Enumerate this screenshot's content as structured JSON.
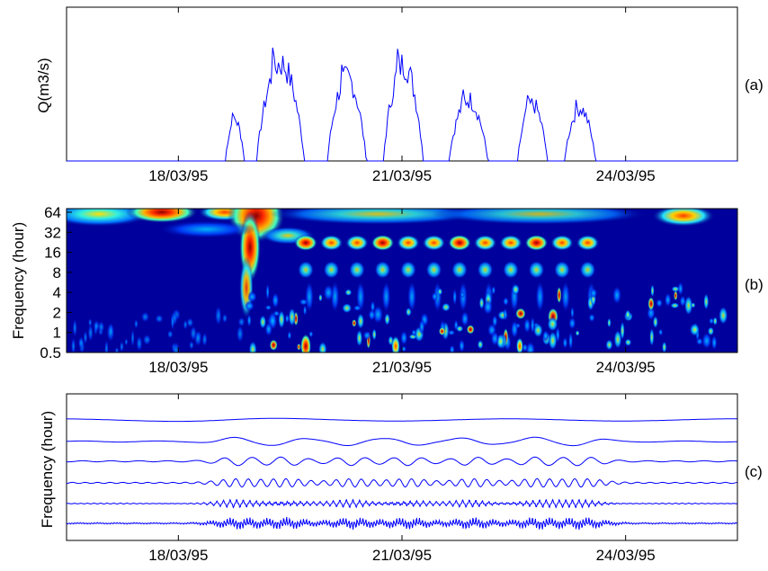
{
  "chart_data": [
    {
      "type": "line",
      "panel": "(a)",
      "ylabel": "Q(m3/s)",
      "xlabel": "",
      "title": "",
      "xticks": [
        "18/03/95",
        "21/03/95",
        "24/03/95"
      ],
      "x_tick_days": [
        1.5,
        4.5,
        7.5
      ],
      "xlim_days": [
        0,
        9
      ],
      "ylim": [
        0,
        1
      ],
      "series_color": "#0000ff",
      "daily_peaks": [
        {
          "day_start": 2.13,
          "day_end": 2.45,
          "peak": 0.42
        },
        {
          "day_start": 2.55,
          "day_end": 3.35,
          "peak": 1.0
        },
        {
          "day_start": 3.5,
          "day_end": 4.15,
          "peak": 0.85
        },
        {
          "day_start": 4.25,
          "day_end": 4.92,
          "peak": 0.99
        },
        {
          "day_start": 5.13,
          "day_end": 5.78,
          "peak": 0.63
        },
        {
          "day_start": 6.05,
          "day_end": 6.55,
          "peak": 0.58
        },
        {
          "day_start": 6.68,
          "day_end": 7.2,
          "peak": 0.54
        }
      ]
    },
    {
      "type": "heatmap",
      "panel": "(b)",
      "ylabel": "Frequency (hour)",
      "yticks": [
        "64",
        "32",
        "16",
        "8",
        "4",
        "2",
        "1",
        "0.5"
      ],
      "xticks": [
        "18/03/95",
        "21/03/95",
        "24/03/95"
      ],
      "colormap": "jet"
    },
    {
      "type": "line",
      "panel": "(c)",
      "ylabel": "Frequency (hour)",
      "xticks": [
        "18/03/95",
        "21/03/95",
        "24/03/95"
      ],
      "n_components": 6
    }
  ]
}
